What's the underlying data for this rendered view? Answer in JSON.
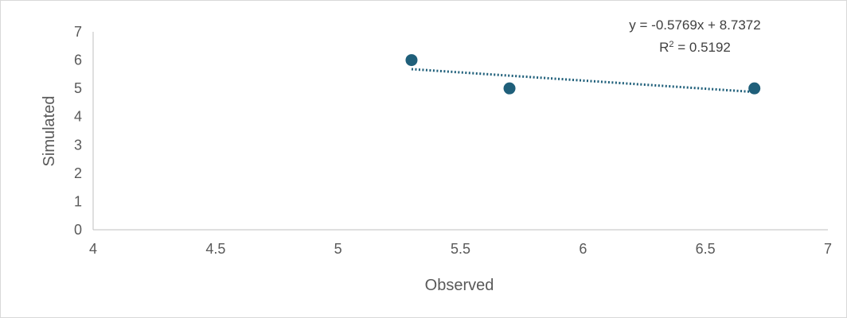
{
  "chart_data": {
    "type": "scatter",
    "title": "",
    "xlabel": "Observed",
    "ylabel": "Simulated",
    "xlim": [
      4,
      7
    ],
    "ylim": [
      0,
      7
    ],
    "x_ticks": [
      4,
      4.5,
      5,
      5.5,
      6,
      6.5,
      7
    ],
    "x_tick_labels": [
      "4",
      "4.5",
      "5",
      "5.5",
      "6",
      "6.5",
      "7"
    ],
    "y_ticks": [
      0,
      1,
      2,
      3,
      4,
      5,
      6,
      7
    ],
    "y_tick_labels": [
      "0",
      "1",
      "2",
      "3",
      "4",
      "5",
      "6",
      "7"
    ],
    "grid": false,
    "legend": "none",
    "series": [
      {
        "x": [
          5.3,
          5.7,
          6.7
        ],
        "y": [
          6,
          5,
          5
        ],
        "color": "#1f5f7a",
        "marker": "circle"
      }
    ],
    "trendline": {
      "type": "linear",
      "slope": -0.5769,
      "intercept": 8.7372,
      "x_range": [
        5.3,
        6.7
      ],
      "style": "dotted",
      "color": "#1f5f7a"
    },
    "annotations": {
      "equation": "y = -0.5769x + 8.7372",
      "r2_prefix": "R",
      "r2_exponent": "2",
      "r2_value": " = 0.5192"
    }
  }
}
